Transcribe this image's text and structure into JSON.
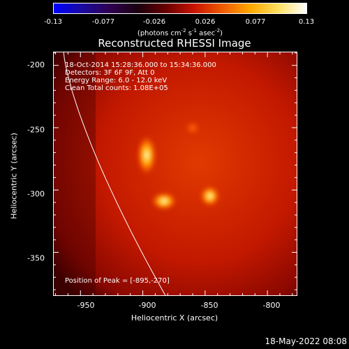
{
  "colorbar": {
    "tick_labels": [
      "-0.13",
      "-0.077",
      "-0.026",
      "0.026",
      "0.077",
      "0.13"
    ],
    "units_prefix": "(photons cm",
    "units_sup1": "-2",
    "units_mid": " s",
    "units_sup2": "-1",
    "units_mid2": " asec",
    "units_sup3": "-2",
    "units_suffix": ")",
    "colors": [
      "#0000ff",
      "#1a0aa0",
      "#300050",
      "#1a0010",
      "#6a0000",
      "#c81400",
      "#f05a00",
      "#ffa800",
      "#ffe060",
      "#ffffff"
    ]
  },
  "title": "Reconstructed RHESSI Image",
  "annotations": {
    "time_range": "18-Oct-2014 15:28:36.000 to 15:34:36.000",
    "detectors": "Detectors: 3F 6F 9F, Att 0",
    "energy_range": "Energy Range: 6.0 - 12.0 keV",
    "clean_total": "Clean     Total counts: 1.08E+05",
    "peak_position": "Position of Peak = [-895,-270]"
  },
  "axes": {
    "xlabel": "Heliocentric X (arcsec)",
    "ylabel": "Heliocentric Y (arcsec)",
    "x_ticks": [
      "-950",
      "-900",
      "-850",
      "-800"
    ],
    "y_ticks": [
      "-200",
      "-250",
      "-300",
      "-350"
    ],
    "xlim": [
      -972,
      -776
    ],
    "ylim": [
      -385,
      -189
    ]
  },
  "sources": [
    {
      "x": -897,
      "y": -272
    },
    {
      "x": -883,
      "y": -309
    },
    {
      "x": -846,
      "y": -305
    },
    {
      "x": -860,
      "y": -250
    }
  ],
  "timestamp": "18-May-2022 08:08"
}
